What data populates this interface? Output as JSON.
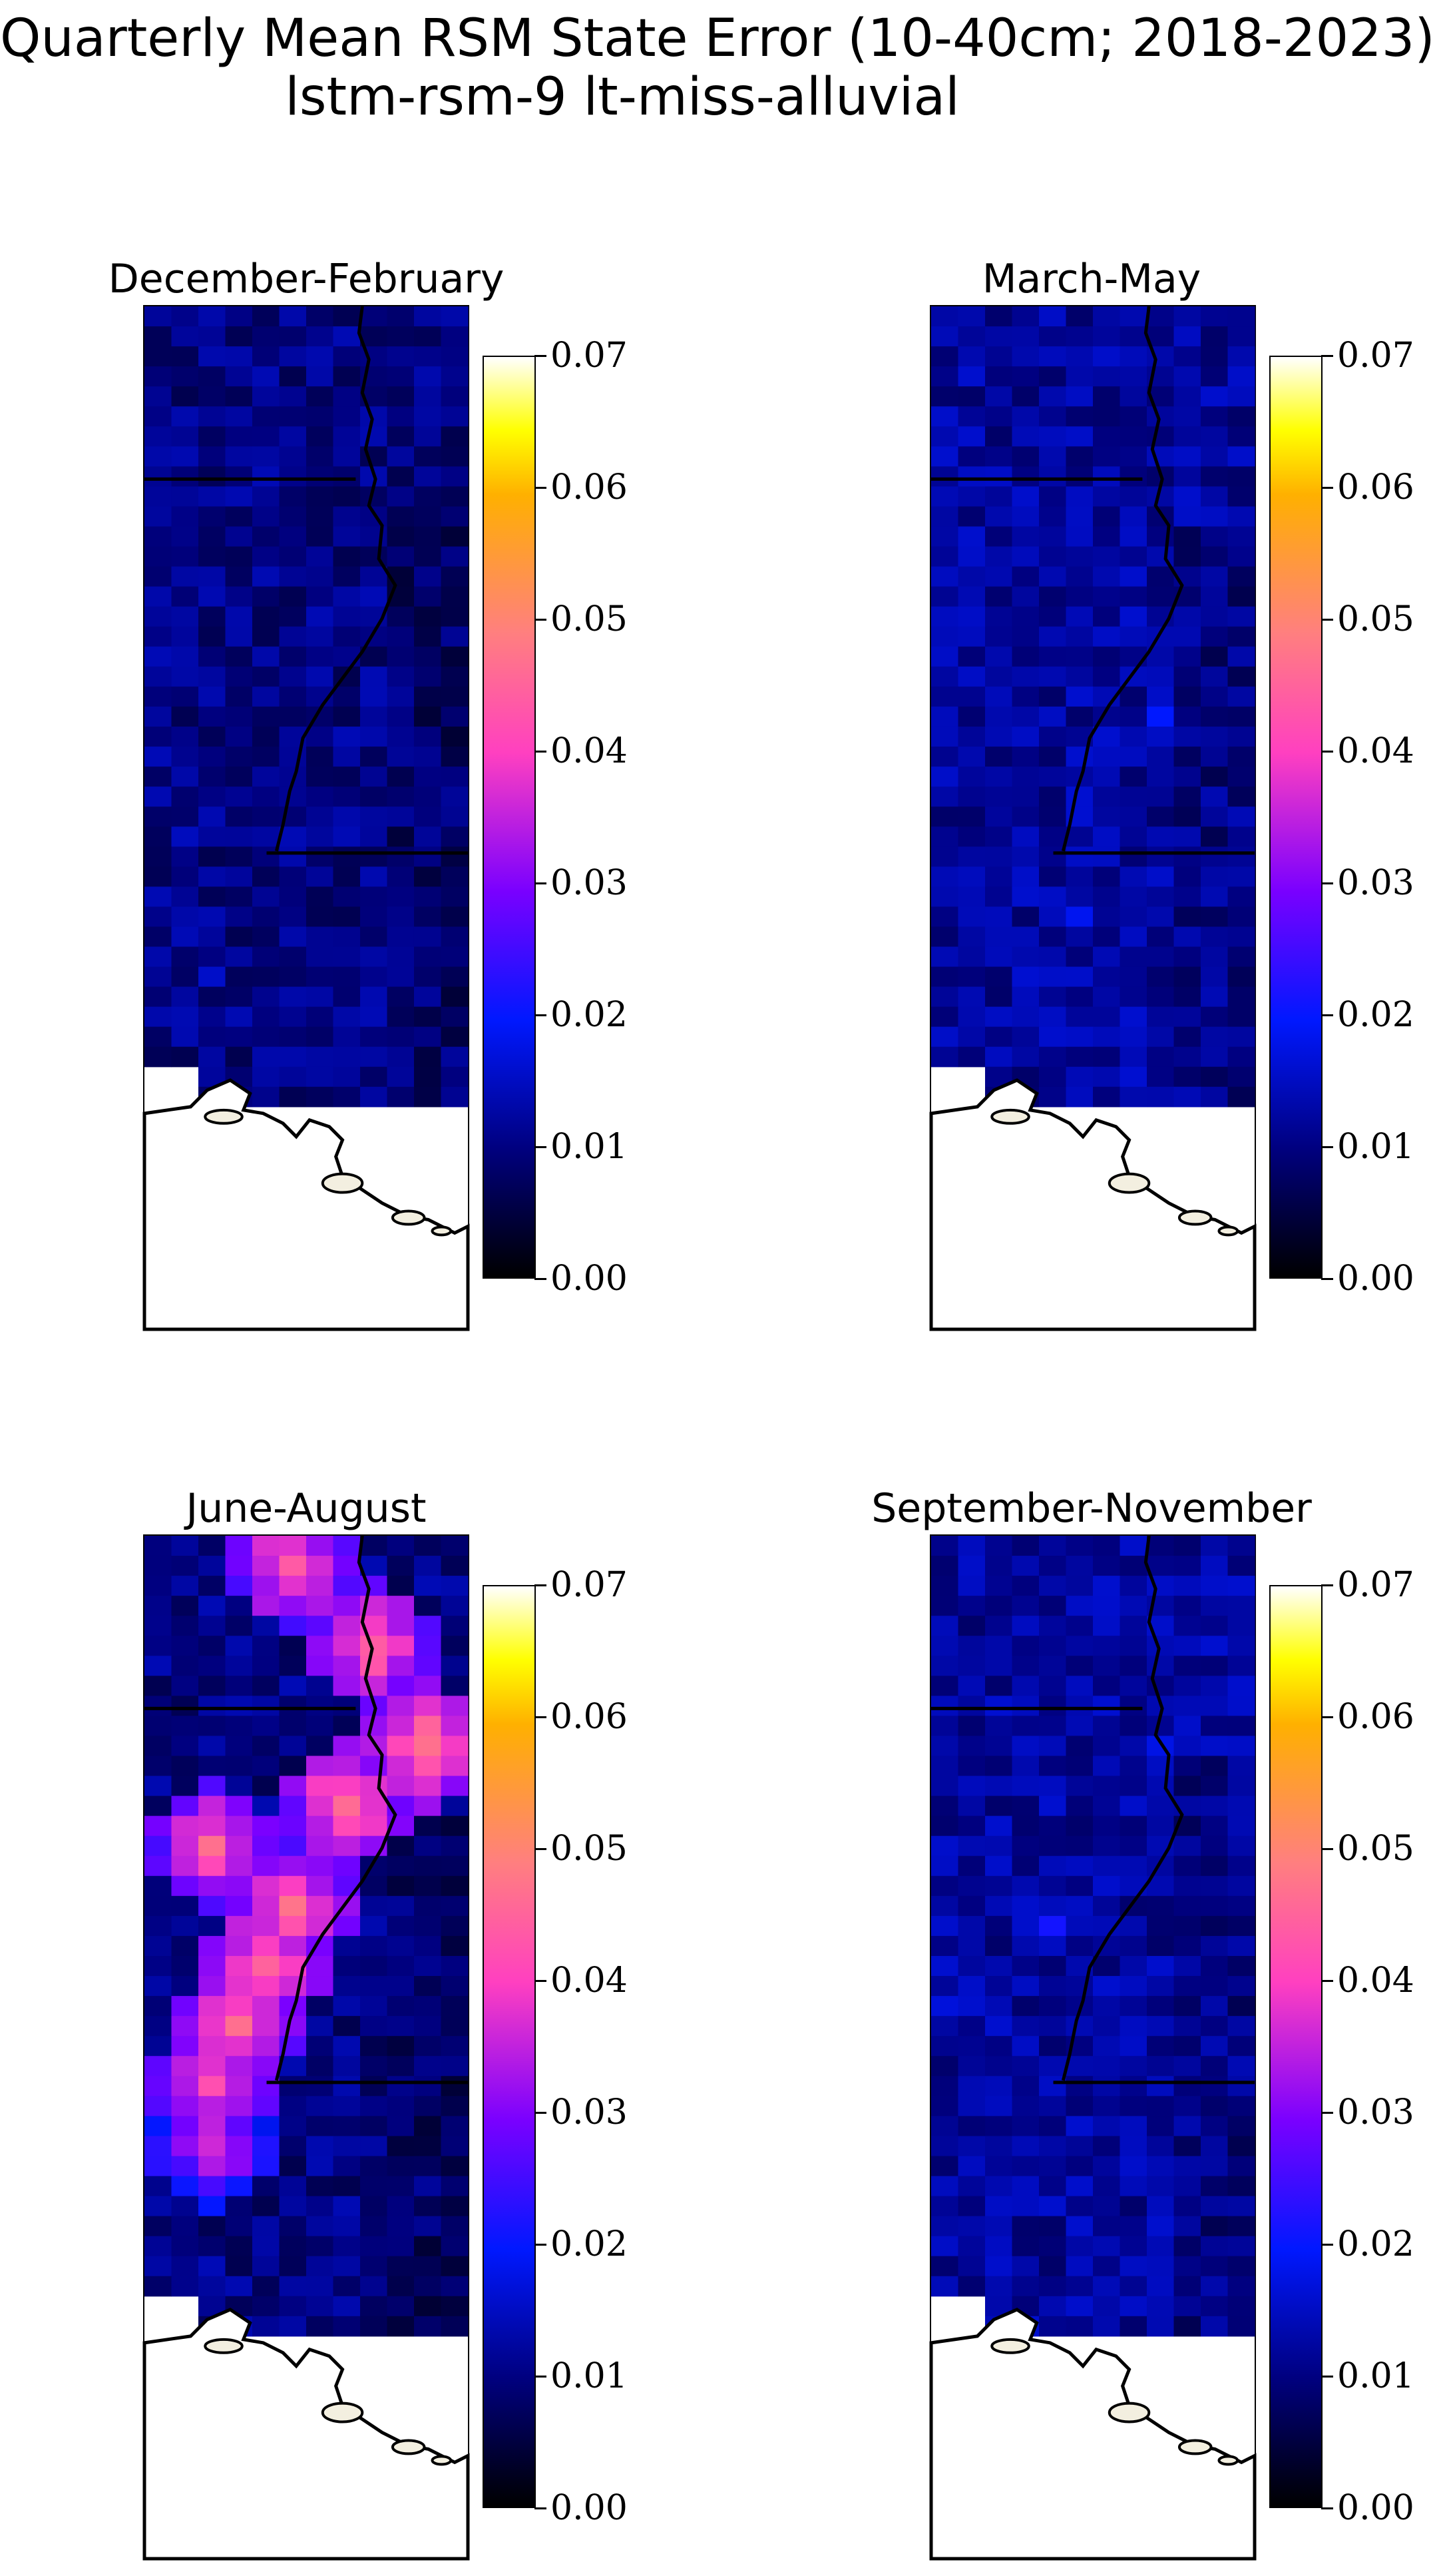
{
  "figure": {
    "title_line1": "Quarterly Mean RSM State Error (10-40cm; 2018-2023)",
    "title_line2": "lstm-rsm-9 lt-miss-alluvial"
  },
  "colormap": {
    "name": "gnuplot2",
    "stops": [
      "#000000",
      "#00007f",
      "#0018ff",
      "#7a00ff",
      "#ff40c0",
      "#ff7f7f",
      "#ffb000",
      "#ffff00",
      "#ffffff"
    ]
  },
  "colorbar": {
    "ticks": [
      "0.00",
      "0.01",
      "0.02",
      "0.03",
      "0.04",
      "0.05",
      "0.06",
      "0.07"
    ],
    "vmin": 0.0,
    "vmax": 0.07
  },
  "land_color": "#f3efe0",
  "chart_data": [
    {
      "type": "heatmap",
      "title": "December-February",
      "grid_shape": [
        12,
        40
      ],
      "base_value": 0.01,
      "hot_cells": [
        {
          "row": 26,
          "col": 1,
          "value": 0.014
        },
        {
          "row": 33,
          "col": 2,
          "value": 0.013
        }
      ],
      "vmin": 0.0,
      "vmax": 0.07
    },
    {
      "type": "heatmap",
      "title": "March-May",
      "grid_shape": [
        12,
        40
      ],
      "base_value": 0.012,
      "hot_cells": [
        {
          "row": 20,
          "col": 8,
          "value": 0.017
        },
        {
          "row": 30,
          "col": 5,
          "value": 0.016
        }
      ],
      "vmin": 0.0,
      "vmax": 0.07
    },
    {
      "type": "heatmap",
      "title": "June-August",
      "grid_shape": [
        12,
        40
      ],
      "base_value": 0.01,
      "hot_cells": [
        {
          "row": 1,
          "col": 5,
          "value": 0.045
        },
        {
          "row": 5,
          "col": 8,
          "value": 0.046
        },
        {
          "row": 10,
          "col": 10,
          "value": 0.048
        },
        {
          "row": 13,
          "col": 7,
          "value": 0.047
        },
        {
          "row": 15,
          "col": 2,
          "value": 0.045
        },
        {
          "row": 18,
          "col": 5,
          "value": 0.046
        },
        {
          "row": 21,
          "col": 4,
          "value": 0.047
        },
        {
          "row": 24,
          "col": 3,
          "value": 0.046
        },
        {
          "row": 27,
          "col": 2,
          "value": 0.043
        },
        {
          "row": 30,
          "col": 2,
          "value": 0.038
        }
      ],
      "vmin": 0.0,
      "vmax": 0.07
    },
    {
      "type": "heatmap",
      "title": "September-November",
      "grid_shape": [
        12,
        40
      ],
      "base_value": 0.012,
      "hot_cells": [
        {
          "row": 10,
          "col": 8,
          "value": 0.018
        },
        {
          "row": 19,
          "col": 4,
          "value": 0.019
        },
        {
          "row": 23,
          "col": 0,
          "value": 0.016
        }
      ],
      "vmin": 0.0,
      "vmax": 0.07
    }
  ]
}
